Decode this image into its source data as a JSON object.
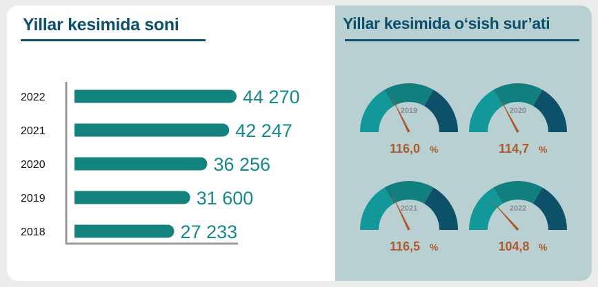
{
  "left_title": "Yillar kesimida soni",
  "right_title": "Yillar kesimida o‘sish sur’ati",
  "colors": {
    "bar": "#14837e",
    "axis": "#999999",
    "value_text": "#13898a",
    "title": "#0d4f6b",
    "gauge_light": "#13989a",
    "gauge_mid": "#127f7f",
    "gauge_dark": "#0d5068",
    "needle": "#a9592e",
    "gauge_value": "#b05a2c"
  },
  "chart_data": [
    {
      "type": "bar",
      "orientation": "horizontal",
      "title": "Yillar kesimida soni",
      "categories": [
        "2022",
        "2021",
        "2020",
        "2019",
        "2018"
      ],
      "values": [
        44270,
        42247,
        36256,
        31600,
        27233
      ],
      "value_labels": [
        "44 270",
        "42 247",
        "36 256",
        "31 600",
        "27 233"
      ],
      "xlim": [
        0,
        46000
      ]
    },
    {
      "type": "gauge",
      "title": "Yillar kesimida o‘sish sur’ati",
      "gauges": [
        {
          "year": "2019",
          "value": 116.0,
          "label": "116,0",
          "unit": "%"
        },
        {
          "year": "2020",
          "value": 114.7,
          "label": "114,7",
          "unit": "%"
        },
        {
          "year": "2021",
          "value": 116.5,
          "label": "116,5",
          "unit": "%"
        },
        {
          "year": "2022",
          "value": 104.8,
          "label": "104,8",
          "unit": "%"
        }
      ],
      "needle_range": [
        70,
        200
      ]
    }
  ]
}
